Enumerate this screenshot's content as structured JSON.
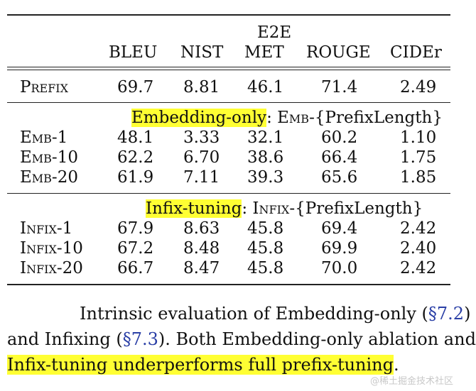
{
  "table": {
    "group_header": "E2E",
    "columns": [
      "BLEU",
      "NIST",
      "MET",
      "ROUGE",
      "CIDEr"
    ],
    "prefix_row": {
      "label": "Prefix",
      "values": [
        "69.7",
        "8.81",
        "46.1",
        "71.4",
        "2.49"
      ]
    },
    "sections": [
      {
        "title_highlight": "Embedding-only",
        "title_colon": ":",
        "title_method": "Emb",
        "title_suffix": "-{PrefixLength}",
        "rows": [
          {
            "label": "Emb-1",
            "values": [
              "48.1",
              "3.33",
              "32.1",
              "60.2",
              "1.10"
            ]
          },
          {
            "label": "Emb-10",
            "values": [
              "62.2",
              "6.70",
              "38.6",
              "66.4",
              "1.75"
            ]
          },
          {
            "label": "Emb-20",
            "values": [
              "61.9",
              "7.11",
              "39.3",
              "65.6",
              "1.85"
            ]
          }
        ]
      },
      {
        "title_highlight": "Infix-tuning",
        "title_colon": ":",
        "title_method": "Infix",
        "title_suffix": "-{PrefixLength}",
        "rows": [
          {
            "label": "Infix-1",
            "values": [
              "67.9",
              "8.63",
              "45.8",
              "69.4",
              "2.42"
            ]
          },
          {
            "label": "Infix-10",
            "values": [
              "67.2",
              "8.48",
              "45.8",
              "69.9",
              "2.40"
            ]
          },
          {
            "label": "Infix-20",
            "values": [
              "66.7",
              "8.47",
              "45.8",
              "70.0",
              "2.42"
            ]
          }
        ]
      }
    ]
  },
  "caption": {
    "line1_text": "Intrinsic evaluation of Embedding-only (",
    "line1_ref": "§7.2",
    "line1_end": ")",
    "line2_start": "and Infixing (",
    "line2_ref": "§7.3",
    "line2_end": ").  Both Embedding-only ablation and",
    "line3_highlight": "Infix-tuning underperforms full prefix-tuning",
    "line3_end": "."
  },
  "watermark": "@稀土掘金技术社区",
  "colors": {
    "highlight": "#ffff33",
    "reference": "#2a3fa6"
  }
}
